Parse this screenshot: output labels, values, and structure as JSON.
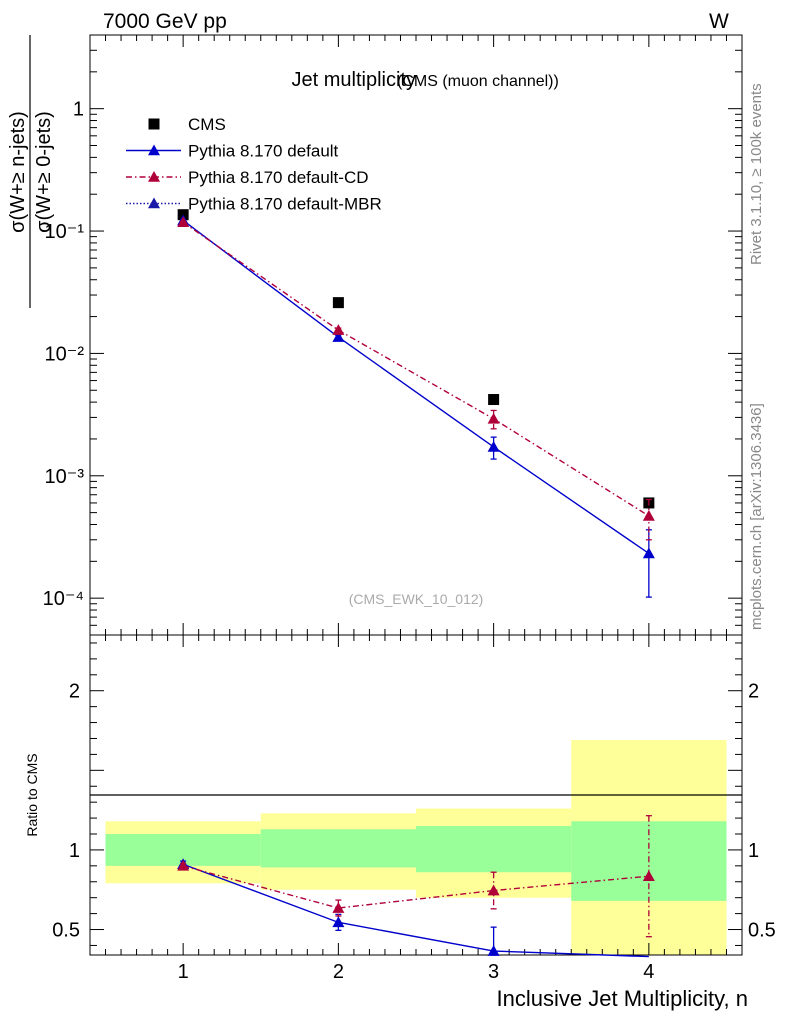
{
  "header": {
    "energy_label": "7000 GeV pp",
    "process_label": "W"
  },
  "side_labels": {
    "rivet": "Rivet 3.1.10, ≥ 100k events",
    "source": "mcplots.cern.ch [arXiv:1306.3436]"
  },
  "chart_data": [
    {
      "panel": "main",
      "type": "line",
      "title": "Jet multiplicity",
      "subtitle": "(CMS (muon channel))",
      "analysis_tag": "(CMS_EWK_10_012)",
      "ylabel_num": "σ(W+≥ n-jets)",
      "ylabel_den": "σ(W+≥ 0-jets)",
      "yscale": "log",
      "ylim": [
        5e-05,
        4
      ],
      "xlim": [
        0.4,
        4.6
      ],
      "y_ticks": [
        {
          "value": 1,
          "label": "1"
        },
        {
          "value": 0.1,
          "label": "10⁻¹"
        },
        {
          "value": 0.01,
          "label": "10⁻²"
        },
        {
          "value": 0.001,
          "label": "10⁻³"
        },
        {
          "value": 0.0001,
          "label": "10⁻⁴"
        }
      ],
      "legend_placement": "top-left",
      "series": [
        {
          "name": "CMS",
          "marker": "square",
          "color": "#000000",
          "line": "none",
          "x": [
            1,
            2,
            3,
            4
          ],
          "y": [
            0.136,
            0.026,
            0.0042,
            0.0006
          ],
          "err": [
            0.006,
            0.0013,
            0.0003,
            5e-05
          ]
        },
        {
          "name": "Pythia 8.170 default",
          "marker": "triangle",
          "color": "#0000cc",
          "line": "solid",
          "x": [
            1,
            2,
            3,
            4
          ],
          "y": [
            0.122,
            0.0136,
            0.00172,
            0.000232
          ],
          "err": [
            0.002,
            0.0006,
            0.00035,
            0.00013
          ]
        },
        {
          "name": "Pythia 8.170 default-CD",
          "marker": "triangle",
          "color": "#b0003a",
          "line": "dashdot",
          "x": [
            1,
            2,
            3,
            4
          ],
          "y": [
            0.118,
            0.0155,
            0.00292,
            0.00047
          ],
          "err": [
            0.002,
            0.0006,
            0.0005,
            0.00017
          ]
        },
        {
          "name": "Pythia 8.170 default-MBR",
          "marker": "triangle",
          "color": "#1a1aaa",
          "line": "dotted",
          "x": [],
          "y": [],
          "err": []
        }
      ]
    },
    {
      "panel": "ratio",
      "type": "line",
      "ylabel": "Ratio to CMS",
      "xlabel": "Inclusive Jet Multiplicity, n",
      "ylim": [
        0.34,
        2.35
      ],
      "xlim": [
        0.4,
        4.6
      ],
      "x_ticks": [
        "1",
        "2",
        "3",
        "4"
      ],
      "y_ticks": [
        {
          "value": 0.5,
          "label": "0.5"
        },
        {
          "value": 1,
          "label": "1"
        },
        {
          "value": 2,
          "label": "2"
        }
      ],
      "bands": [
        {
          "x0": 0.5,
          "x1": 1.5,
          "yellow": [
            0.79,
            1.18
          ],
          "green": [
            0.9,
            1.1
          ]
        },
        {
          "x0": 1.5,
          "x1": 2.5,
          "yellow": [
            0.75,
            1.23
          ],
          "green": [
            0.89,
            1.13
          ]
        },
        {
          "x0": 2.5,
          "x1": 3.5,
          "yellow": [
            0.7,
            1.26
          ],
          "green": [
            0.86,
            1.15
          ]
        },
        {
          "x0": 3.5,
          "x1": 4.5,
          "yellow": [
            0.34,
            1.69
          ],
          "green": [
            0.68,
            1.18
          ]
        }
      ],
      "series": [
        {
          "name": "Pythia 8.170 default",
          "color": "#0000cc",
          "line": "solid",
          "x": [
            1,
            2,
            3,
            4
          ],
          "y": [
            0.91,
            0.545,
            0.365,
            0.33
          ],
          "err": [
            0.02,
            0.05,
            0.15,
            0.0
          ]
        },
        {
          "name": "Pythia 8.170 default-CD",
          "color": "#b0003a",
          "line": "dashdot",
          "x": [
            1,
            2,
            3,
            4
          ],
          "y": [
            0.9,
            0.635,
            0.745,
            0.835
          ],
          "err": [
            0.015,
            0.05,
            0.115,
            0.38
          ]
        }
      ]
    }
  ]
}
